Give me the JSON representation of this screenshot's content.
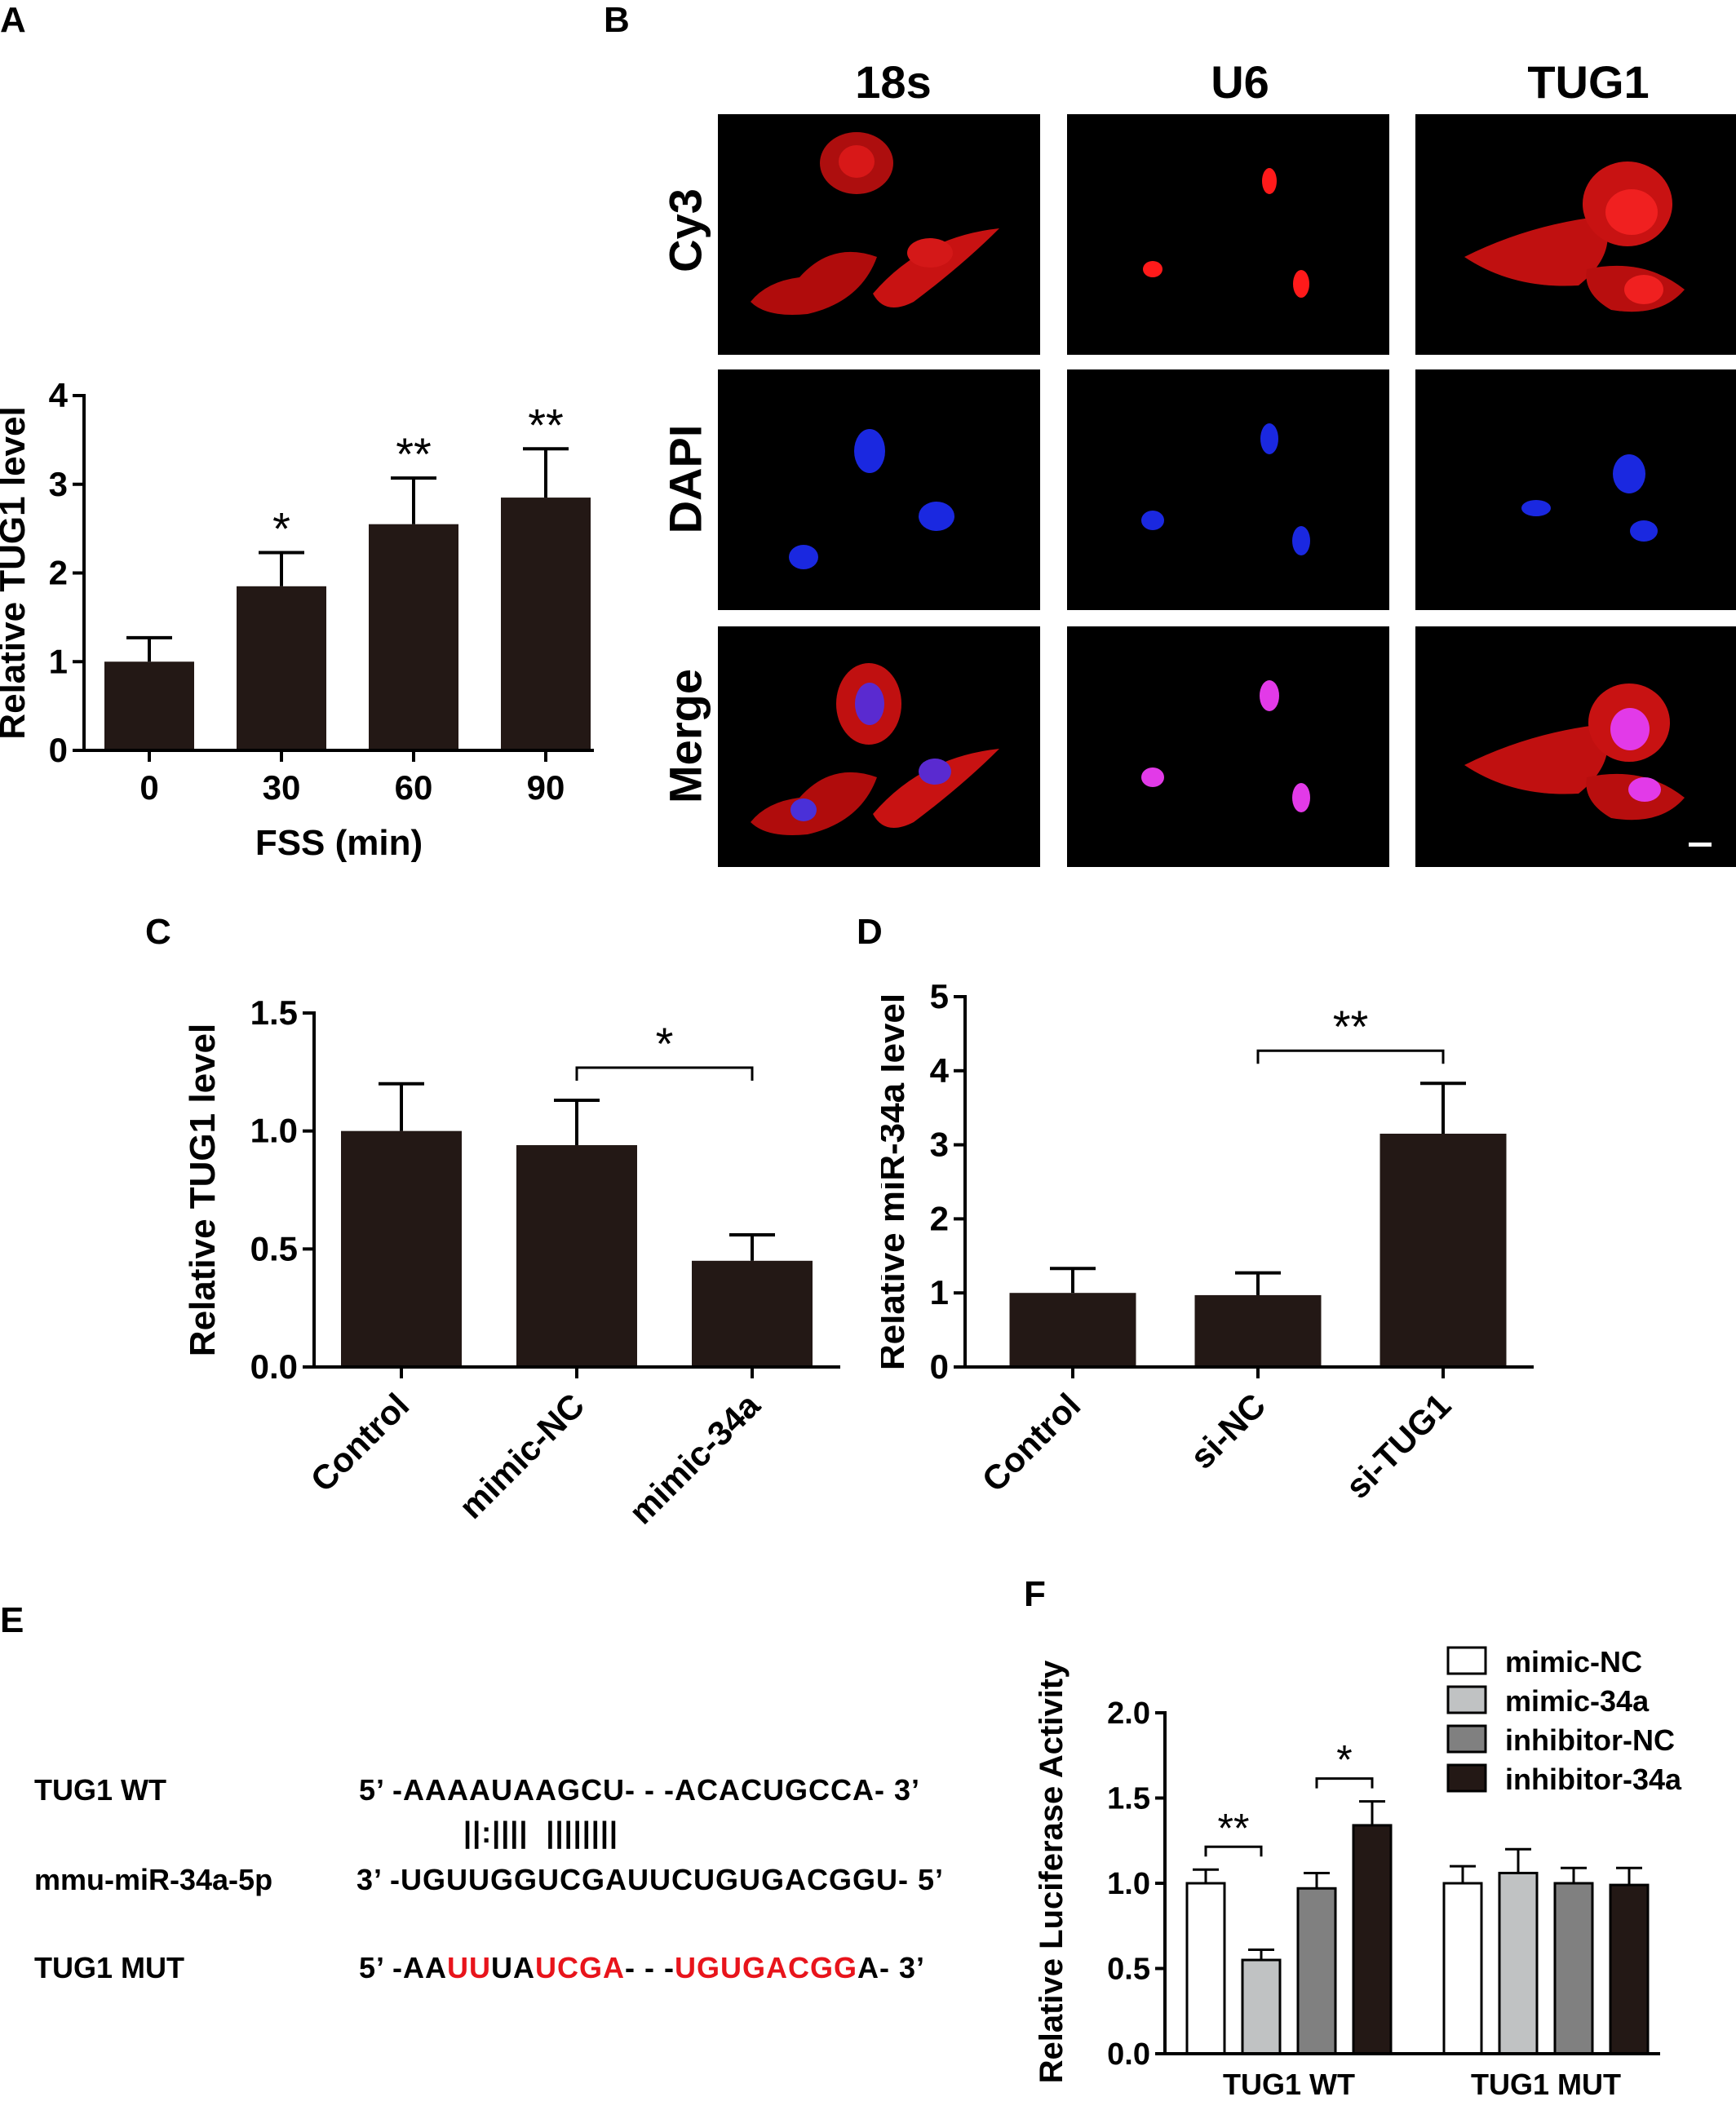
{
  "panels": {
    "A": "A",
    "B": "B",
    "C": "C",
    "D": "D",
    "E": "E",
    "F": "F"
  },
  "panel_b": {
    "columns": [
      "18s",
      "U6",
      "TUG1"
    ],
    "rows": [
      "Cy3",
      "DAPI",
      "Merge"
    ],
    "colors": {
      "cy3": "#e01010",
      "dapi": "#1a28e0",
      "merge_nucleus": "#e23ae8"
    }
  },
  "panel_e": {
    "rows": [
      {
        "label": "TUG1 WT",
        "prefix": "5’ -",
        "seq": "AAAAUAAGCU- - -ACACUGCCA",
        "suffix": "- 3’"
      },
      {
        "label": "mmu-miR-34a-5p",
        "prefix": "3’ -",
        "seq": "UGUUGGUCGAUUCUGUGACGGU",
        "suffix": "- 5’"
      },
      {
        "label": "TUG1 MUT",
        "prefix": "5’ -",
        "seq_parts": [
          {
            "t": "AA",
            "red": false
          },
          {
            "t": "UU",
            "red": true
          },
          {
            "t": "UA",
            "red": false
          },
          {
            "t": "UCGA",
            "red": true
          },
          {
            "t": "- - -",
            "red": false
          },
          {
            "t": "UGUGACGG",
            "red": true
          },
          {
            "t": "A",
            "red": false
          }
        ],
        "suffix": "- 3’"
      }
    ],
    "pairing": "||:||||  ||||||||"
  },
  "chart_data": [
    {
      "panel": "A",
      "type": "bar",
      "categories": [
        "0",
        "30",
        "60",
        "90"
      ],
      "values": [
        1.0,
        1.85,
        2.55,
        2.85
      ],
      "errors": [
        0.27,
        0.38,
        0.52,
        0.55
      ],
      "significance": [
        "",
        "*",
        "**",
        "**"
      ],
      "xlabel": "FSS (min)",
      "ylabel": "Relative TUG1 level",
      "ylim": [
        0,
        4
      ],
      "yticks": [
        "0",
        "1",
        "2",
        "3",
        "4"
      ],
      "bar_color": "#231815"
    },
    {
      "panel": "C",
      "type": "bar",
      "categories": [
        "Control",
        "mimic-NC",
        "mimic-34a"
      ],
      "values": [
        1.0,
        0.94,
        0.45
      ],
      "errors": [
        0.2,
        0.19,
        0.11
      ],
      "comparisons": [
        {
          "from": 1,
          "to": 2,
          "label": "*"
        }
      ],
      "xlabel": "",
      "ylabel": "Relative TUG1 level",
      "ylim": [
        0,
        1.5
      ],
      "yticks": [
        "0.0",
        "0.5",
        "1.0",
        "1.5"
      ],
      "bar_color": "#231815"
    },
    {
      "panel": "D",
      "type": "bar",
      "categories": [
        "Control",
        "si-NC",
        "si-TUG1"
      ],
      "values": [
        1.0,
        0.97,
        3.15
      ],
      "errors": [
        0.33,
        0.3,
        0.68
      ],
      "comparisons": [
        {
          "from": 1,
          "to": 2,
          "label": "**"
        }
      ],
      "xlabel": "",
      "ylabel": "Relative miR-34a level",
      "ylim": [
        0,
        5
      ],
      "yticks": [
        "0",
        "1",
        "2",
        "3",
        "4",
        "5"
      ],
      "bar_color": "#231815"
    },
    {
      "panel": "F",
      "type": "bar",
      "categories": [
        "TUG1 WT",
        "TUG1 MUT"
      ],
      "series": [
        {
          "name": "mimic-NC",
          "values": [
            1.0,
            1.0
          ],
          "errors": [
            0.08,
            0.1
          ],
          "color": "#ffffff"
        },
        {
          "name": "mimic-34a",
          "values": [
            0.55,
            1.06
          ],
          "errors": [
            0.06,
            0.14
          ],
          "color": "#c0c2c3"
        },
        {
          "name": "inhibitor-NC",
          "values": [
            0.97,
            1.0
          ],
          "errors": [
            0.09,
            0.09
          ],
          "color": "#808080"
        },
        {
          "name": "inhibitor-34a",
          "values": [
            1.34,
            0.99
          ],
          "errors": [
            0.14,
            0.1
          ],
          "color": "#231815"
        }
      ],
      "comparisons": [
        {
          "group": 0,
          "from": 0,
          "to": 1,
          "label": "**"
        },
        {
          "group": 0,
          "from": 2,
          "to": 3,
          "label": "*"
        }
      ],
      "ylabel": "Relative Luciferase Activity",
      "ylim": [
        0,
        2.0
      ],
      "yticks": [
        "0.0",
        "0.5",
        "1.0",
        "1.5",
        "2.0"
      ],
      "legend_position": "top-right"
    }
  ]
}
